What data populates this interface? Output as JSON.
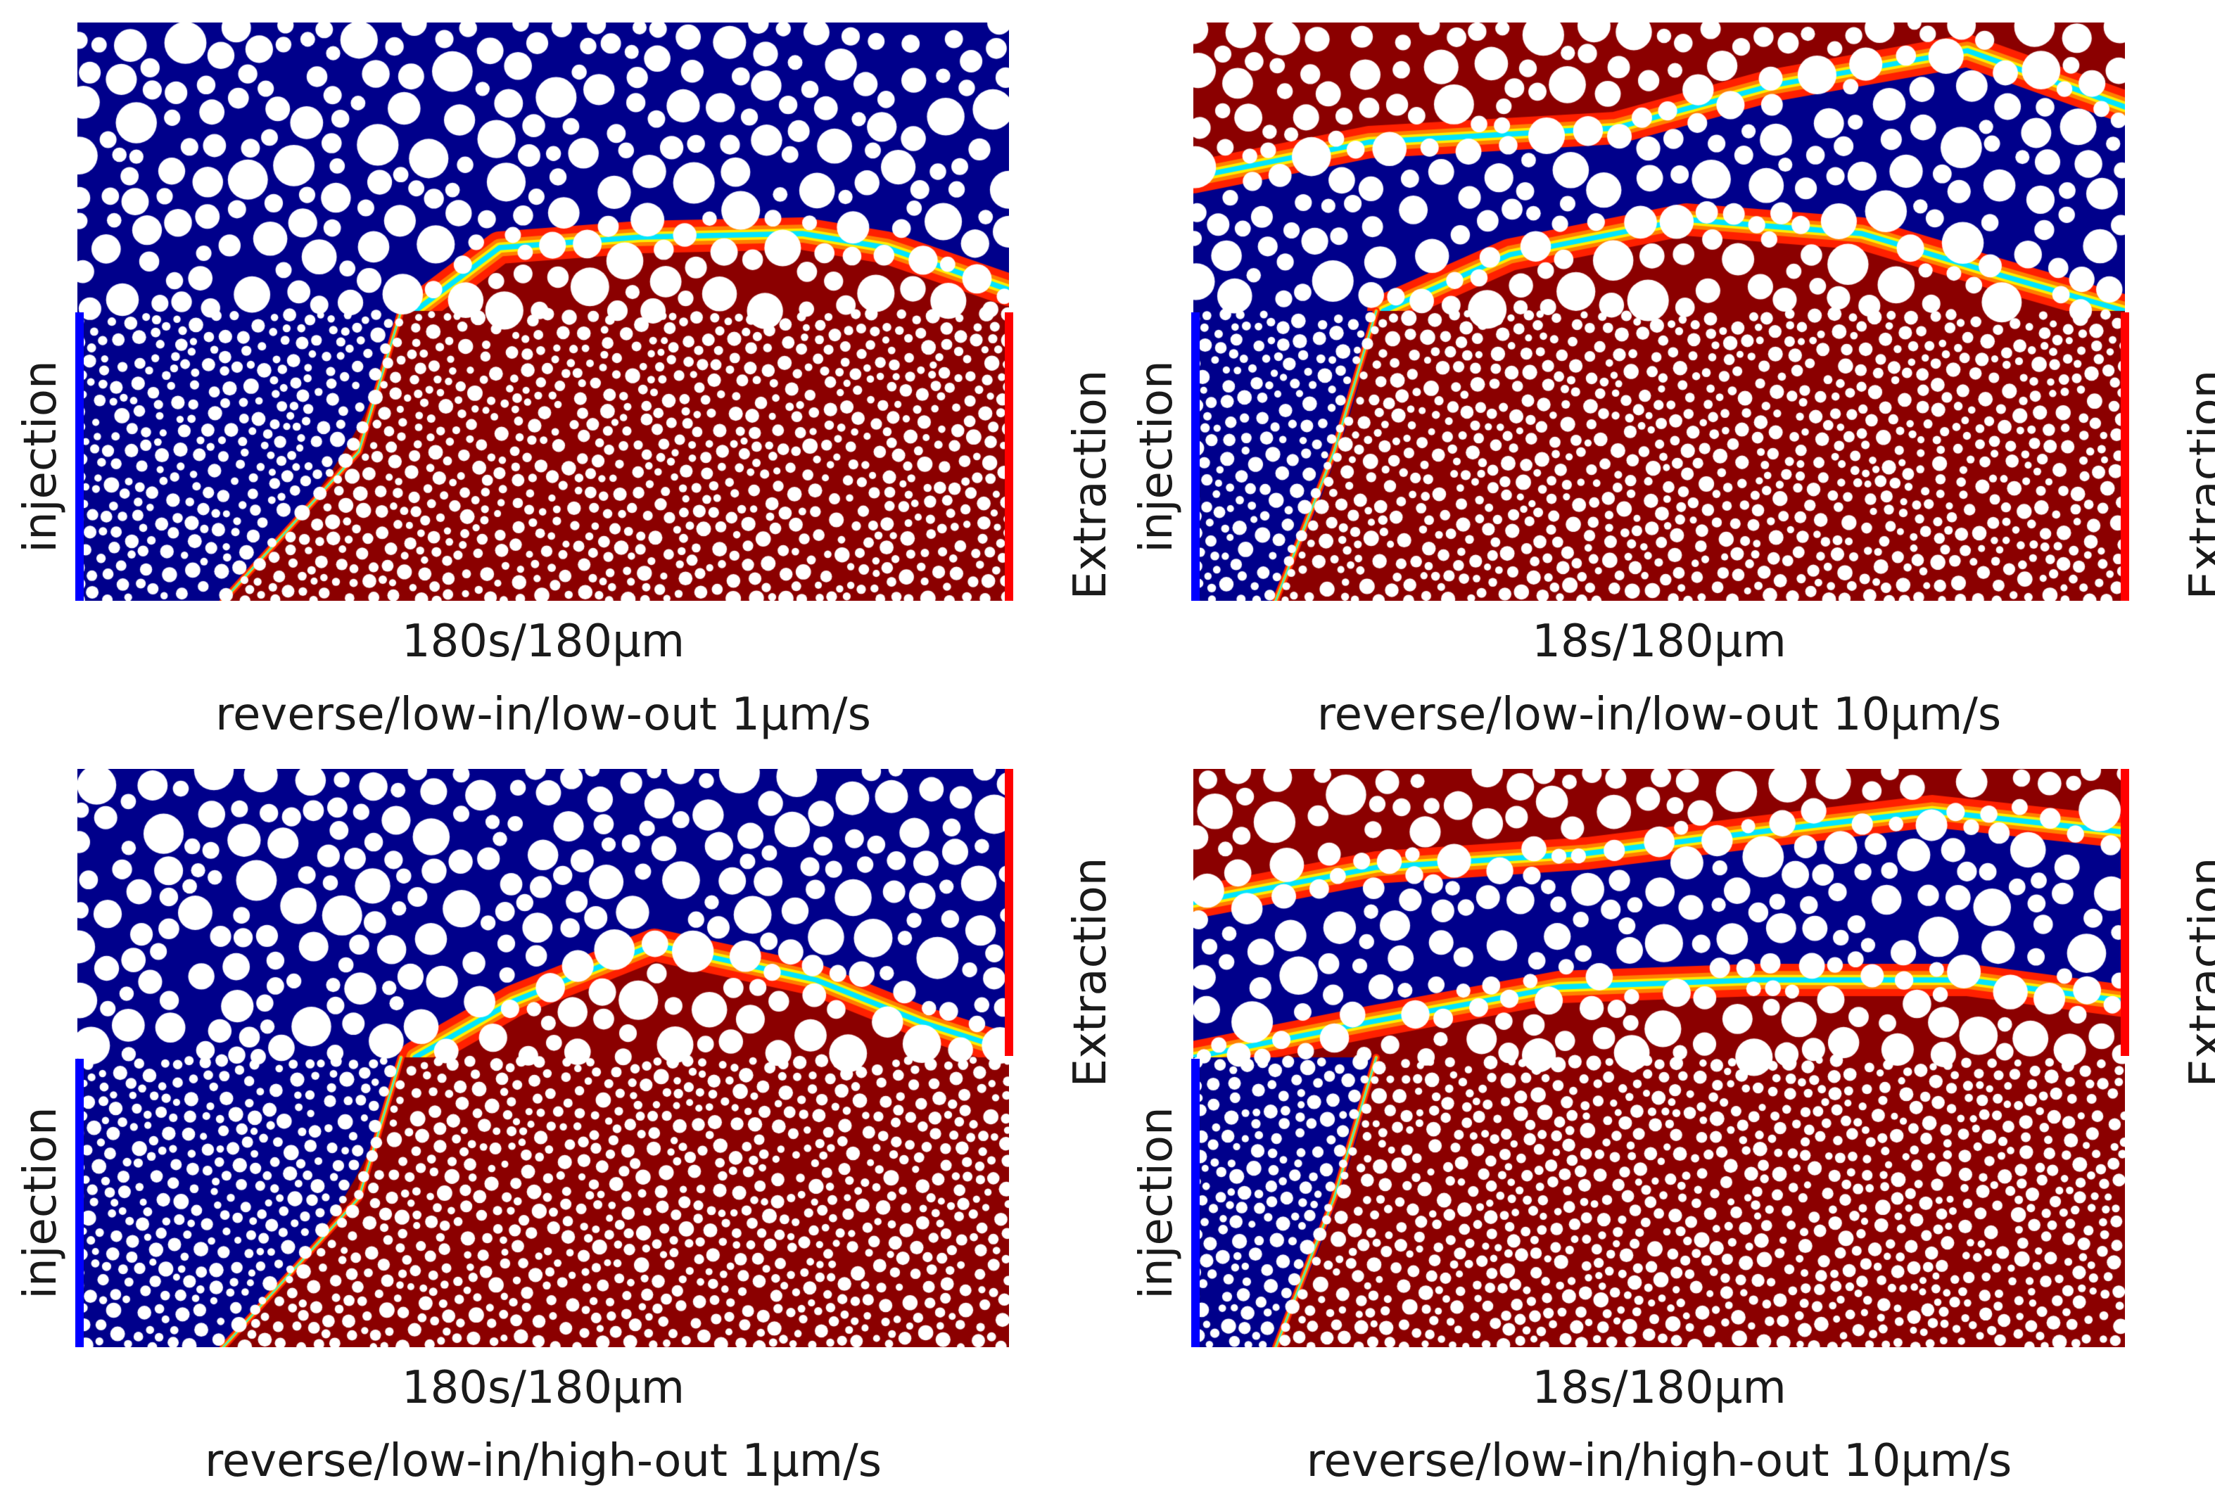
{
  "colors": {
    "displaced_fluid": "#8b0000",
    "injected_fluid": "#00008b",
    "interface_gradient": [
      "#00008b",
      "#0080ff",
      "#00ffff",
      "#ffff00",
      "#ff8000",
      "#ff0000",
      "#8b0000"
    ],
    "grains": "#ffffff",
    "injection_boundary": "#0000ff",
    "extraction_boundary": "#ff0000"
  },
  "panels": [
    {
      "time_label": "180s/180µm",
      "scenario_label": "reverse/low-in/low-out 1µm/s",
      "injection_label": "injection",
      "extraction_label": "Extraction",
      "injection_side": "left-bottom",
      "extraction_side": "right-bottom"
    },
    {
      "time_label": "18s/180µm",
      "scenario_label": "reverse/low-in/low-out 10µm/s",
      "injection_label": "injection",
      "extraction_label": "Extraction",
      "injection_side": "left-bottom",
      "extraction_side": "right-bottom"
    },
    {
      "time_label": "180s/180µm",
      "scenario_label": "reverse/low-in/high-out 1µm/s",
      "injection_label": "injection",
      "extraction_label": "Extraction",
      "injection_side": "left-bottom",
      "extraction_side": "right-top"
    },
    {
      "time_label": "18s/180µm",
      "scenario_label": "reverse/low-in/high-out 10µm/s",
      "injection_label": "injection",
      "extraction_label": "Extraction",
      "injection_side": "left-bottom",
      "extraction_side": "right-top"
    }
  ]
}
